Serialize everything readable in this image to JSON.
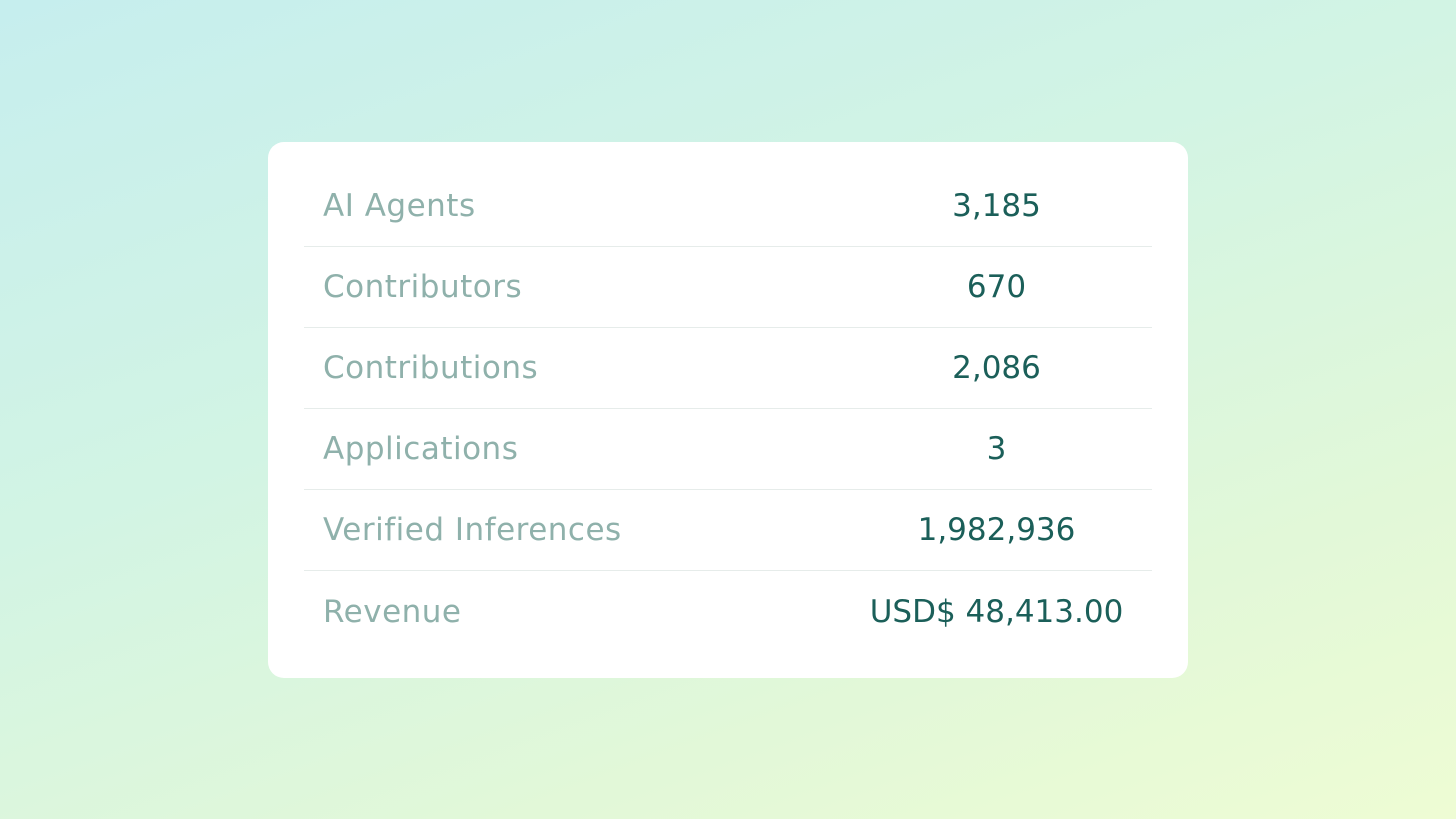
{
  "stats": {
    "rows": [
      {
        "label": "AI Agents",
        "value": "3,185"
      },
      {
        "label": "Contributors",
        "value": "670"
      },
      {
        "label": "Contributions",
        "value": "2,086"
      },
      {
        "label": "Applications",
        "value": "3"
      },
      {
        "label": "Verified Inferences",
        "value": "1,982,936"
      },
      {
        "label": "Revenue",
        "value": "USD$ 48,413.00"
      }
    ]
  },
  "colors": {
    "label": "#8fb1ab",
    "value": "#1b5f59",
    "card": "#ffffff",
    "divider": "#e6ecea"
  }
}
